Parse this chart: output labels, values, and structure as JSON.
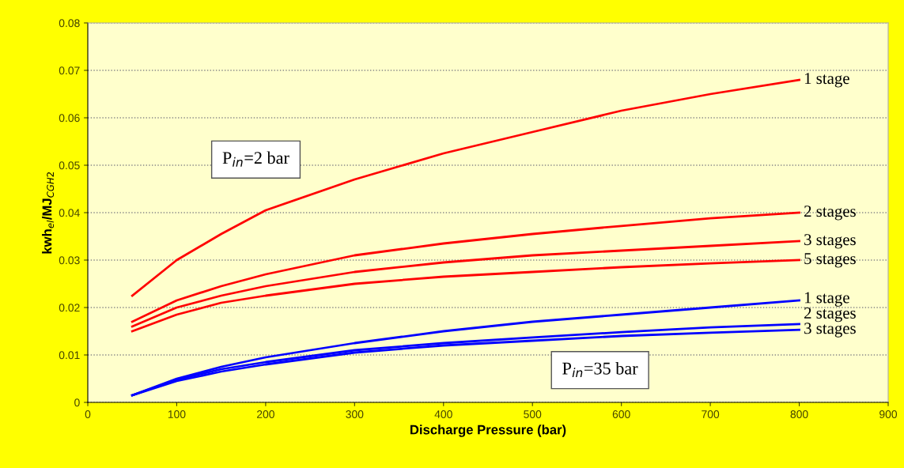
{
  "chart_data": {
    "type": "line",
    "xlabel": "Discharge Pressure (bar)",
    "ylabel": "kwh$_{el}$/MJ$_{CGH2}$",
    "x": [
      50,
      100,
      150,
      200,
      300,
      400,
      500,
      600,
      700,
      800
    ],
    "series": [
      {
        "name": "1 stage",
        "color": "#ff0000",
        "values": [
          0.0225,
          0.03,
          0.0355,
          0.0405,
          0.047,
          0.0525,
          0.057,
          0.0615,
          0.065,
          0.068
        ]
      },
      {
        "name": "2 stages",
        "color": "#ff0000",
        "values": [
          0.017,
          0.0215,
          0.0245,
          0.027,
          0.031,
          0.0335,
          0.0355,
          0.0372,
          0.0388,
          0.04
        ]
      },
      {
        "name": "3 stages",
        "color": "#ff0000",
        "values": [
          0.016,
          0.02,
          0.0225,
          0.0245,
          0.0275,
          0.0295,
          0.031,
          0.032,
          0.033,
          0.034
        ]
      },
      {
        "name": "5 stages",
        "color": "#ff0000",
        "values": [
          0.015,
          0.0185,
          0.021,
          0.0225,
          0.025,
          0.0265,
          0.0275,
          0.0285,
          0.0293,
          0.03
        ]
      },
      {
        "name": "1 stage",
        "color": "#0000ff",
        "values": [
          0.0015,
          0.005,
          0.0075,
          0.0095,
          0.0125,
          0.015,
          0.017,
          0.0185,
          0.02,
          0.0215
        ]
      },
      {
        "name": "2 stages",
        "color": "#0000ff",
        "values": [
          0.0015,
          0.0048,
          0.007,
          0.0085,
          0.011,
          0.0125,
          0.0137,
          0.0148,
          0.0158,
          0.0165
        ]
      },
      {
        "name": "3 stages",
        "color": "#0000ff",
        "values": [
          0.0015,
          0.0045,
          0.0065,
          0.008,
          0.0105,
          0.012,
          0.013,
          0.014,
          0.0147,
          0.0153
        ]
      }
    ],
    "annotations": [
      "P$_{in}$=2 bar",
      "P$_{in}$=35 bar"
    ],
    "xlim": [
      0,
      900
    ],
    "xticks": [
      0,
      100,
      200,
      300,
      400,
      500,
      600,
      700,
      800,
      900
    ],
    "ylim": [
      0,
      0.08
    ],
    "yticks": [
      0,
      0.01,
      0.02,
      0.03,
      0.04,
      0.05,
      0.06,
      0.07,
      0.08
    ],
    "grid": "y",
    "legend": false,
    "marker": "none",
    "line_style": "solid"
  }
}
